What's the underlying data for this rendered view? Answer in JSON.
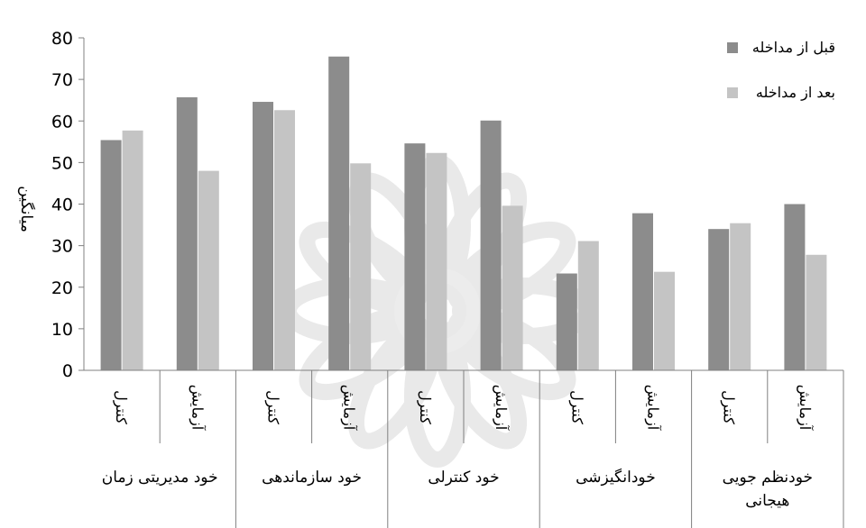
{
  "chart_data": {
    "type": "bar",
    "ylabel": "میانگین",
    "ylim": [
      0,
      80
    ],
    "yticks": [
      0,
      10,
      20,
      30,
      40,
      50,
      60,
      70,
      80
    ],
    "legend_position": "top-right",
    "groups": [
      "خود مدیریتی زمان",
      "خود سازماندهی",
      "خود کنترلی",
      "خودانگیزشی",
      "خودنظم جویی هیجانی"
    ],
    "categories": [
      "کنترل",
      "آزمایش",
      "کنترل",
      "آزمایش",
      "کنترل",
      "آزمایش",
      "کنترل",
      "آزمایش",
      "کنترل",
      "آزمایش"
    ],
    "series": [
      {
        "name": "قبل از مداخله",
        "color": "#8c8c8c",
        "values": [
          55.4,
          65.7,
          64.6,
          75.5,
          54.6,
          60.1,
          23.3,
          37.8,
          34.0,
          40.0
        ]
      },
      {
        "name": "بعد از مداخله",
        "color": "#c4c4c4",
        "values": [
          57.7,
          48.0,
          62.6,
          49.8,
          52.3,
          39.6,
          31.1,
          23.7,
          35.4,
          27.8
        ]
      }
    ]
  }
}
